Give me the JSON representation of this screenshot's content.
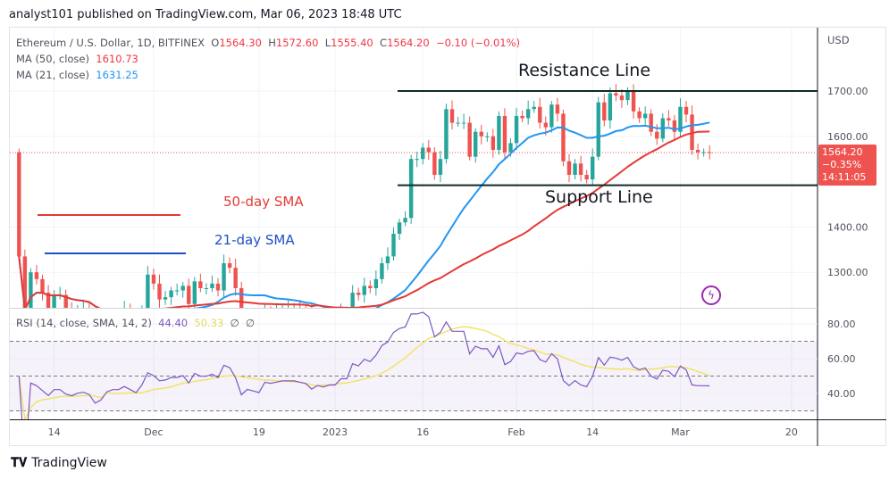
{
  "header": {
    "published": "analyst101 published on TradingView.com, Mar 06, 2023 18:48 UTC"
  },
  "legend": {
    "symbol": "Ethereum / U.S. Dollar, 1D, BITFINEX",
    "o_label": "O",
    "o": "1564.30",
    "h_label": "H",
    "h": "1572.60",
    "l_label": "L",
    "l": "1555.40",
    "c_label": "C",
    "c": "1564.20",
    "change": "−0.10 (−0.01%)",
    "ma50_label": "MA (50, close)",
    "ma50": "1610.73",
    "ma21_label": "MA (21, close)",
    "ma21": "1631.25",
    "rsi_label": "RSI (14, close, SMA, 14, 2)",
    "rsi": "44.40",
    "rsi_sma": "50.33",
    "extra1": "∅",
    "extra2": "∅"
  },
  "price_tag": {
    "price": "1564.20",
    "pct": "−0.35%",
    "countdown": "14:11:05"
  },
  "annotations": {
    "resistance": "Resistance Line",
    "support": "Support Line",
    "sma50": "50-day SMA",
    "sma21": "21-day SMA"
  },
  "brand": "TradingView",
  "colors": {
    "up": "#26a69a",
    "down": "#ef5350",
    "ma50": "#e53935",
    "ma21": "#2196f3",
    "rsi": "#7e57c2",
    "rsi_sma": "#f4e26b"
  },
  "chart_data": {
    "type": "candlestick",
    "currency": "USD",
    "start_date": "2022-11-08",
    "closes": [
      1335,
      1100,
      1300,
      1285,
      1255,
      1220,
      1250,
      1250,
      1215,
      1200,
      1215,
      1220,
      1200,
      1110,
      1130,
      1185,
      1200,
      1200,
      1220,
      1195,
      1170,
      1215,
      1295,
      1275,
      1240,
      1245,
      1260,
      1260,
      1270,
      1230,
      1280,
      1265,
      1265,
      1275,
      1260,
      1320,
      1310,
      1265,
      1165,
      1190,
      1180,
      1170,
      1215,
      1210,
      1215,
      1220,
      1220,
      1220,
      1215,
      1210,
      1190,
      1200,
      1195,
      1200,
      1200,
      1215,
      1215,
      1255,
      1250,
      1270,
      1265,
      1285,
      1320,
      1335,
      1385,
      1410,
      1420,
      1550,
      1550,
      1575,
      1565,
      1515,
      1550,
      1660,
      1630,
      1630,
      1630,
      1555,
      1610,
      1600,
      1600,
      1570,
      1645,
      1565,
      1585,
      1645,
      1640,
      1660,
      1665,
      1630,
      1620,
      1670,
      1650,
      1545,
      1515,
      1540,
      1515,
      1505,
      1555,
      1675,
      1635,
      1695,
      1690,
      1680,
      1700,
      1655,
      1640,
      1650,
      1610,
      1595,
      1640,
      1635,
      1610,
      1665,
      1648,
      1570,
      1565,
      1565,
      1564
    ],
    "price_ticks": [
      "1700.00",
      "1600.00",
      "1400.00",
      "1300.00"
    ],
    "rsi_ticks": [
      "80.00",
      "60.00",
      "40.00"
    ],
    "x_ticks": [
      {
        "label": "14",
        "day": -48
      },
      {
        "label": "Dec",
        "day": -31
      },
      {
        "label": "19",
        "day": -13
      },
      {
        "label": "2023",
        "day": 0
      },
      {
        "label": "16",
        "day": 15
      },
      {
        "label": "Feb",
        "day": 31
      },
      {
        "label": "14",
        "day": 44
      },
      {
        "label": "Mar",
        "day": 59
      },
      {
        "label": "20",
        "day": 78
      }
    ],
    "resistance": 1700,
    "support": 1492,
    "rsi_bands": [
      70,
      50,
      30
    ]
  }
}
